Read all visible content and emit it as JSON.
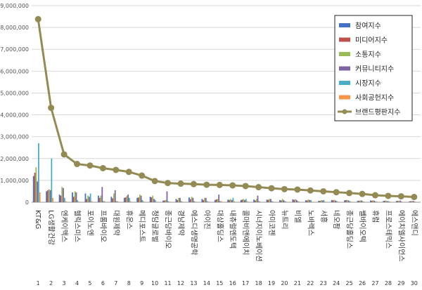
{
  "chart_data": {
    "type": "bar",
    "ylim": [
      0,
      9000000
    ],
    "y_ticks": [
      "0",
      "1,000,000",
      "2,000,000",
      "3,000,000",
      "4,000,000",
      "5,000,000",
      "6,000,000",
      "7,000,000",
      "8,000,000",
      "9,000,000"
    ],
    "grid": true,
    "legend_position": "top-right",
    "ranks": [
      "1",
      "2",
      "3",
      "4",
      "5",
      "6",
      "7",
      "8",
      "9",
      "10",
      "11",
      "12",
      "13",
      "14",
      "15",
      "16",
      "17",
      "18",
      "19",
      "20",
      "21",
      "22",
      "23",
      "24",
      "25",
      "26",
      "27",
      "28",
      "29",
      "30"
    ],
    "categories": [
      "KT&G",
      "LG생활건강",
      "엔케이맥스",
      "헬릭스미스",
      "포이노엔",
      "프롬바이오",
      "대원제약",
      "휴온스",
      "메디포스트",
      "청담글로벌",
      "종근당바이오",
      "경남제약",
      "에스디생명공학",
      "아이진",
      "대상홀딩스",
      "내츄럴엔도텍",
      "콜마비앤에이치",
      "시너지이노베이션",
      "아미코젠",
      "뉴트리",
      "비엘",
      "노바렉스",
      "서흥",
      "네오팜",
      "종근당홀딩스",
      "쎌바이오텍",
      "휴럼",
      "프로스테믹스",
      "에이치엘사이언스",
      "에스앤디"
    ],
    "series": [
      {
        "name": "참여지수",
        "color": "#4472c4",
        "values": [
          1200000,
          500000,
          350000,
          450000,
          400000,
          300000,
          250000,
          200000,
          200000,
          250000,
          80000,
          150000,
          220000,
          150000,
          100000,
          120000,
          100000,
          120000,
          120000,
          100000,
          130000,
          90000,
          70000,
          100000,
          90000,
          60000,
          80000,
          60000,
          60000,
          40000
        ]
      },
      {
        "name": "미디어지수",
        "color": "#c0504d",
        "values": [
          1350000,
          550000,
          300000,
          250000,
          150000,
          200000,
          180000,
          220000,
          220000,
          220000,
          80000,
          100000,
          140000,
          100000,
          130000,
          100000,
          120000,
          80000,
          110000,
          80000,
          110000,
          80000,
          60000,
          90000,
          100000,
          70000,
          70000,
          70000,
          60000,
          50000
        ]
      },
      {
        "name": "소통지수",
        "color": "#9bbb59",
        "values": [
          1600000,
          600000,
          700000,
          500000,
          300000,
          300000,
          400000,
          300000,
          350000,
          300000,
          100000,
          200000,
          250000,
          200000,
          150000,
          150000,
          150000,
          150000,
          150000,
          150000,
          140000,
          130000,
          100000,
          110000,
          100000,
          80000,
          90000,
          80000,
          70000,
          60000
        ]
      },
      {
        "name": "커뮤니티지수",
        "color": "#8064a2",
        "values": [
          950000,
          550000,
          650000,
          450000,
          250000,
          700000,
          550000,
          350000,
          300000,
          150000,
          500000,
          200000,
          200000,
          200000,
          350000,
          100000,
          100000,
          300000,
          150000,
          100000,
          100000,
          100000,
          80000,
          80000,
          80000,
          80000,
          70000,
          50000,
          80000,
          60000
        ]
      },
      {
        "name": "시장지수",
        "color": "#4bacc6",
        "values": [
          2700000,
          2000000,
          200000,
          100000,
          400000,
          50000,
          50000,
          200000,
          100000,
          100000,
          50000,
          50000,
          50000,
          50000,
          50000,
          200000,
          150000,
          50000,
          50000,
          50000,
          50000,
          100000,
          100000,
          50000,
          50000,
          50000,
          30000,
          50000,
          30000,
          30000
        ]
      },
      {
        "name": "사회공헌지수",
        "color": "#f79646",
        "values": [
          450000,
          200000,
          50000,
          30000,
          50000,
          50000,
          50000,
          50000,
          50000,
          30000,
          30000,
          30000,
          30000,
          30000,
          50000,
          50000,
          50000,
          30000,
          30000,
          30000,
          30000,
          30000,
          30000,
          30000,
          30000,
          30000,
          30000,
          30000,
          20000,
          20000
        ]
      },
      {
        "name": "브랜드평판지수",
        "color": "#948a54",
        "type": "line",
        "values": [
          8380000,
          4320000,
          2190000,
          1750000,
          1680000,
          1560000,
          1480000,
          1390000,
          1220000,
          970000,
          880000,
          850000,
          830000,
          800000,
          790000,
          770000,
          740000,
          690000,
          640000,
          600000,
          580000,
          540000,
          500000,
          460000,
          420000,
          380000,
          320000,
          290000,
          270000,
          240000
        ]
      }
    ]
  }
}
